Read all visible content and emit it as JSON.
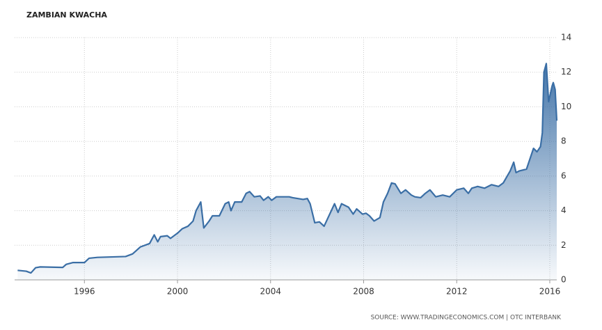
{
  "chart_data": {
    "type": "line",
    "title": "ZAMBIAN KWACHA",
    "source": "SOURCE: WWW.TRADINGECONOMICS.COM | OTC INTERBANK",
    "x": [
      1993.13,
      1993.5,
      1993.7,
      1993.9,
      1994.1,
      1995.07,
      1995.22,
      1995.5,
      1996.0,
      1996.2,
      1996.56,
      1997.77,
      1998.07,
      1998.4,
      1998.8,
      1999.0,
      1999.15,
      1999.27,
      1999.56,
      1999.7,
      2000.0,
      2000.2,
      2000.45,
      2000.67,
      2000.8,
      2001.0,
      2001.13,
      2001.36,
      2001.5,
      2001.8,
      2002.05,
      2002.2,
      2002.3,
      2002.46,
      2002.76,
      2002.95,
      2003.1,
      2003.3,
      2003.55,
      2003.7,
      2003.9,
      2004.05,
      2004.25,
      2004.8,
      2004.95,
      2005.4,
      2005.58,
      2005.7,
      2005.9,
      2006.1,
      2006.3,
      2006.75,
      2006.9,
      2007.05,
      2007.35,
      2007.55,
      2007.7,
      2007.95,
      2008.1,
      2008.25,
      2008.45,
      2008.7,
      2008.85,
      2009.03,
      2009.2,
      2009.35,
      2009.6,
      2009.8,
      2010.05,
      2010.2,
      2010.45,
      2010.65,
      2010.85,
      2011.1,
      2011.4,
      2011.7,
      2012.0,
      2012.3,
      2012.5,
      2012.65,
      2012.9,
      2013.2,
      2013.5,
      2013.8,
      2014.0,
      2014.3,
      2014.45,
      2014.55,
      2014.7,
      2015.0,
      2015.3,
      2015.45,
      2015.6,
      2015.68,
      2015.75,
      2015.85,
      2015.95,
      2016.1,
      2016.15,
      2016.23,
      2016.3
    ],
    "series": [
      {
        "name": "ZAMBIAN KWACHA",
        "color": "#3a6ea5",
        "values": [
          0.55,
          0.5,
          0.4,
          0.7,
          0.75,
          0.72,
          0.9,
          1.0,
          1.0,
          1.25,
          1.3,
          1.35,
          1.5,
          1.9,
          2.1,
          2.6,
          2.2,
          2.5,
          2.55,
          2.4,
          2.7,
          2.95,
          3.1,
          3.4,
          4.0,
          4.5,
          3.0,
          3.4,
          3.7,
          3.7,
          4.4,
          4.5,
          4.0,
          4.5,
          4.5,
          5.0,
          5.1,
          4.8,
          4.85,
          4.6,
          4.8,
          4.6,
          4.8,
          4.8,
          4.75,
          4.65,
          4.7,
          4.4,
          3.3,
          3.35,
          3.1,
          4.4,
          3.9,
          4.4,
          4.2,
          3.8,
          4.1,
          3.8,
          3.85,
          3.7,
          3.4,
          3.6,
          4.5,
          5.0,
          5.6,
          5.55,
          5.0,
          5.2,
          4.9,
          4.8,
          4.75,
          5.0,
          5.2,
          4.8,
          4.9,
          4.8,
          5.2,
          5.3,
          5.0,
          5.3,
          5.4,
          5.3,
          5.5,
          5.4,
          5.6,
          6.3,
          6.8,
          6.2,
          6.3,
          6.4,
          7.6,
          7.4,
          7.7,
          8.5,
          12.0,
          12.5,
          10.3,
          11.2,
          11.4,
          11.0,
          9.2
        ]
      }
    ],
    "xlim": [
      1993,
      2016.3
    ],
    "xticks": [
      1996,
      2000,
      2004,
      2008,
      2012,
      2016
    ],
    "ylim": [
      0,
      14
    ],
    "yticks": [
      0,
      2,
      4,
      6,
      8,
      10,
      12,
      14
    ],
    "grid": true
  }
}
